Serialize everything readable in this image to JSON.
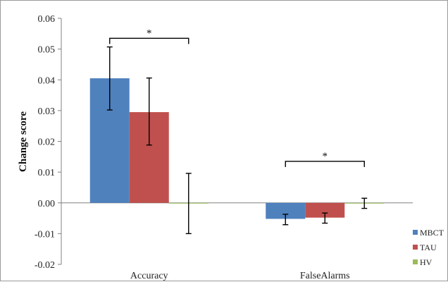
{
  "chart_data": {
    "type": "bar",
    "title": "",
    "xlabel": "",
    "ylabel": "Change score",
    "ylim": [
      -0.02,
      0.06
    ],
    "yticks": [
      "0.06",
      "0.05",
      "0.04",
      "0.03",
      "0.02",
      "0.01",
      "0.00",
      "-0.01",
      "-0.02"
    ],
    "ytick_values": [
      0.06,
      0.05,
      0.04,
      0.03,
      0.02,
      0.01,
      0.0,
      -0.01,
      -0.02
    ],
    "categories": [
      "Accuracy",
      "FalseAlarms"
    ],
    "series": [
      {
        "name": "MBCT",
        "color": "#4f81bd",
        "values": [
          0.0405,
          -0.0052
        ],
        "error_low": [
          0.0302,
          -0.0071
        ],
        "error_high": [
          0.0507,
          -0.0037
        ]
      },
      {
        "name": "TAU",
        "color": "#c0504d",
        "values": [
          0.0295,
          -0.0048
        ],
        "error_low": [
          0.0188,
          -0.0066
        ],
        "error_high": [
          0.0406,
          -0.0033
        ]
      },
      {
        "name": "HV",
        "color": "#9bbb59",
        "values": [
          -0.0002,
          0.0
        ],
        "error_low": [
          -0.01,
          -0.0018
        ],
        "error_high": [
          0.0096,
          0.0015
        ]
      }
    ],
    "grid": false,
    "legend_position": "bottom-right",
    "annotations": [
      {
        "text": "*",
        "category": "Accuracy",
        "from_series": "MBCT",
        "to_series": "HV",
        "bracket_y": 0.0535
      },
      {
        "text": "*",
        "category": "FalseAlarms",
        "from_series": "MBCT",
        "to_series": "HV",
        "bracket_y": 0.0135
      }
    ]
  }
}
